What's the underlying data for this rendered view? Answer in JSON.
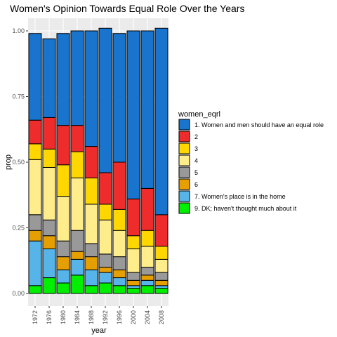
{
  "chart_data": {
    "type": "bar",
    "stacked": true,
    "title": "Women's Opinion Towards Equal Role Over the Years",
    "xlabel": "year",
    "ylabel": "prop",
    "ylim": [
      0,
      1
    ],
    "yticks": [
      "0.00",
      "0.25",
      "0.50",
      "0.75",
      "1.00"
    ],
    "grid": true,
    "legend_title": "women_eqrl",
    "legend_position": "right",
    "categories": [
      "1972",
      "1976",
      "1980",
      "1984",
      "1988",
      "1992",
      "1996",
      "2000",
      "2004",
      "2008"
    ],
    "series": [
      {
        "name": "1. Women and men should have an equal role",
        "color": "#1874CD",
        "values": [
          0.33,
          0.3,
          0.35,
          0.36,
          0.44,
          0.55,
          0.49,
          0.64,
          0.6,
          0.71
        ]
      },
      {
        "name": "2",
        "color": "#EE2C2C",
        "values": [
          0.09,
          0.12,
          0.15,
          0.1,
          0.12,
          0.12,
          0.18,
          0.14,
          0.16,
          0.12
        ]
      },
      {
        "name": "3",
        "color": "#FFD700",
        "values": [
          0.06,
          0.07,
          0.12,
          0.1,
          0.1,
          0.06,
          0.08,
          0.05,
          0.06,
          0.05
        ]
      },
      {
        "name": "4",
        "color": "#FFEC8B",
        "values": [
          0.21,
          0.2,
          0.17,
          0.2,
          0.15,
          0.13,
          0.1,
          0.09,
          0.08,
          0.05
        ]
      },
      {
        "name": "5",
        "color": "#999999",
        "values": [
          0.06,
          0.06,
          0.06,
          0.08,
          0.05,
          0.05,
          0.05,
          0.03,
          0.03,
          0.03
        ]
      },
      {
        "name": "6",
        "color": "#E69F00",
        "values": [
          0.04,
          0.05,
          0.05,
          0.03,
          0.05,
          0.02,
          0.03,
          0.02,
          0.02,
          0.02
        ]
      },
      {
        "name": "7. Women's place is in the home",
        "color": "#56B4E9",
        "values": [
          0.17,
          0.11,
          0.05,
          0.06,
          0.06,
          0.04,
          0.03,
          0.01,
          0.02,
          0.01
        ]
      },
      {
        "name": "9. DK; haven't thought much about it",
        "color": "#00EE00",
        "values": [
          0.03,
          0.06,
          0.04,
          0.07,
          0.03,
          0.04,
          0.03,
          0.02,
          0.03,
          0.02
        ]
      }
    ]
  }
}
